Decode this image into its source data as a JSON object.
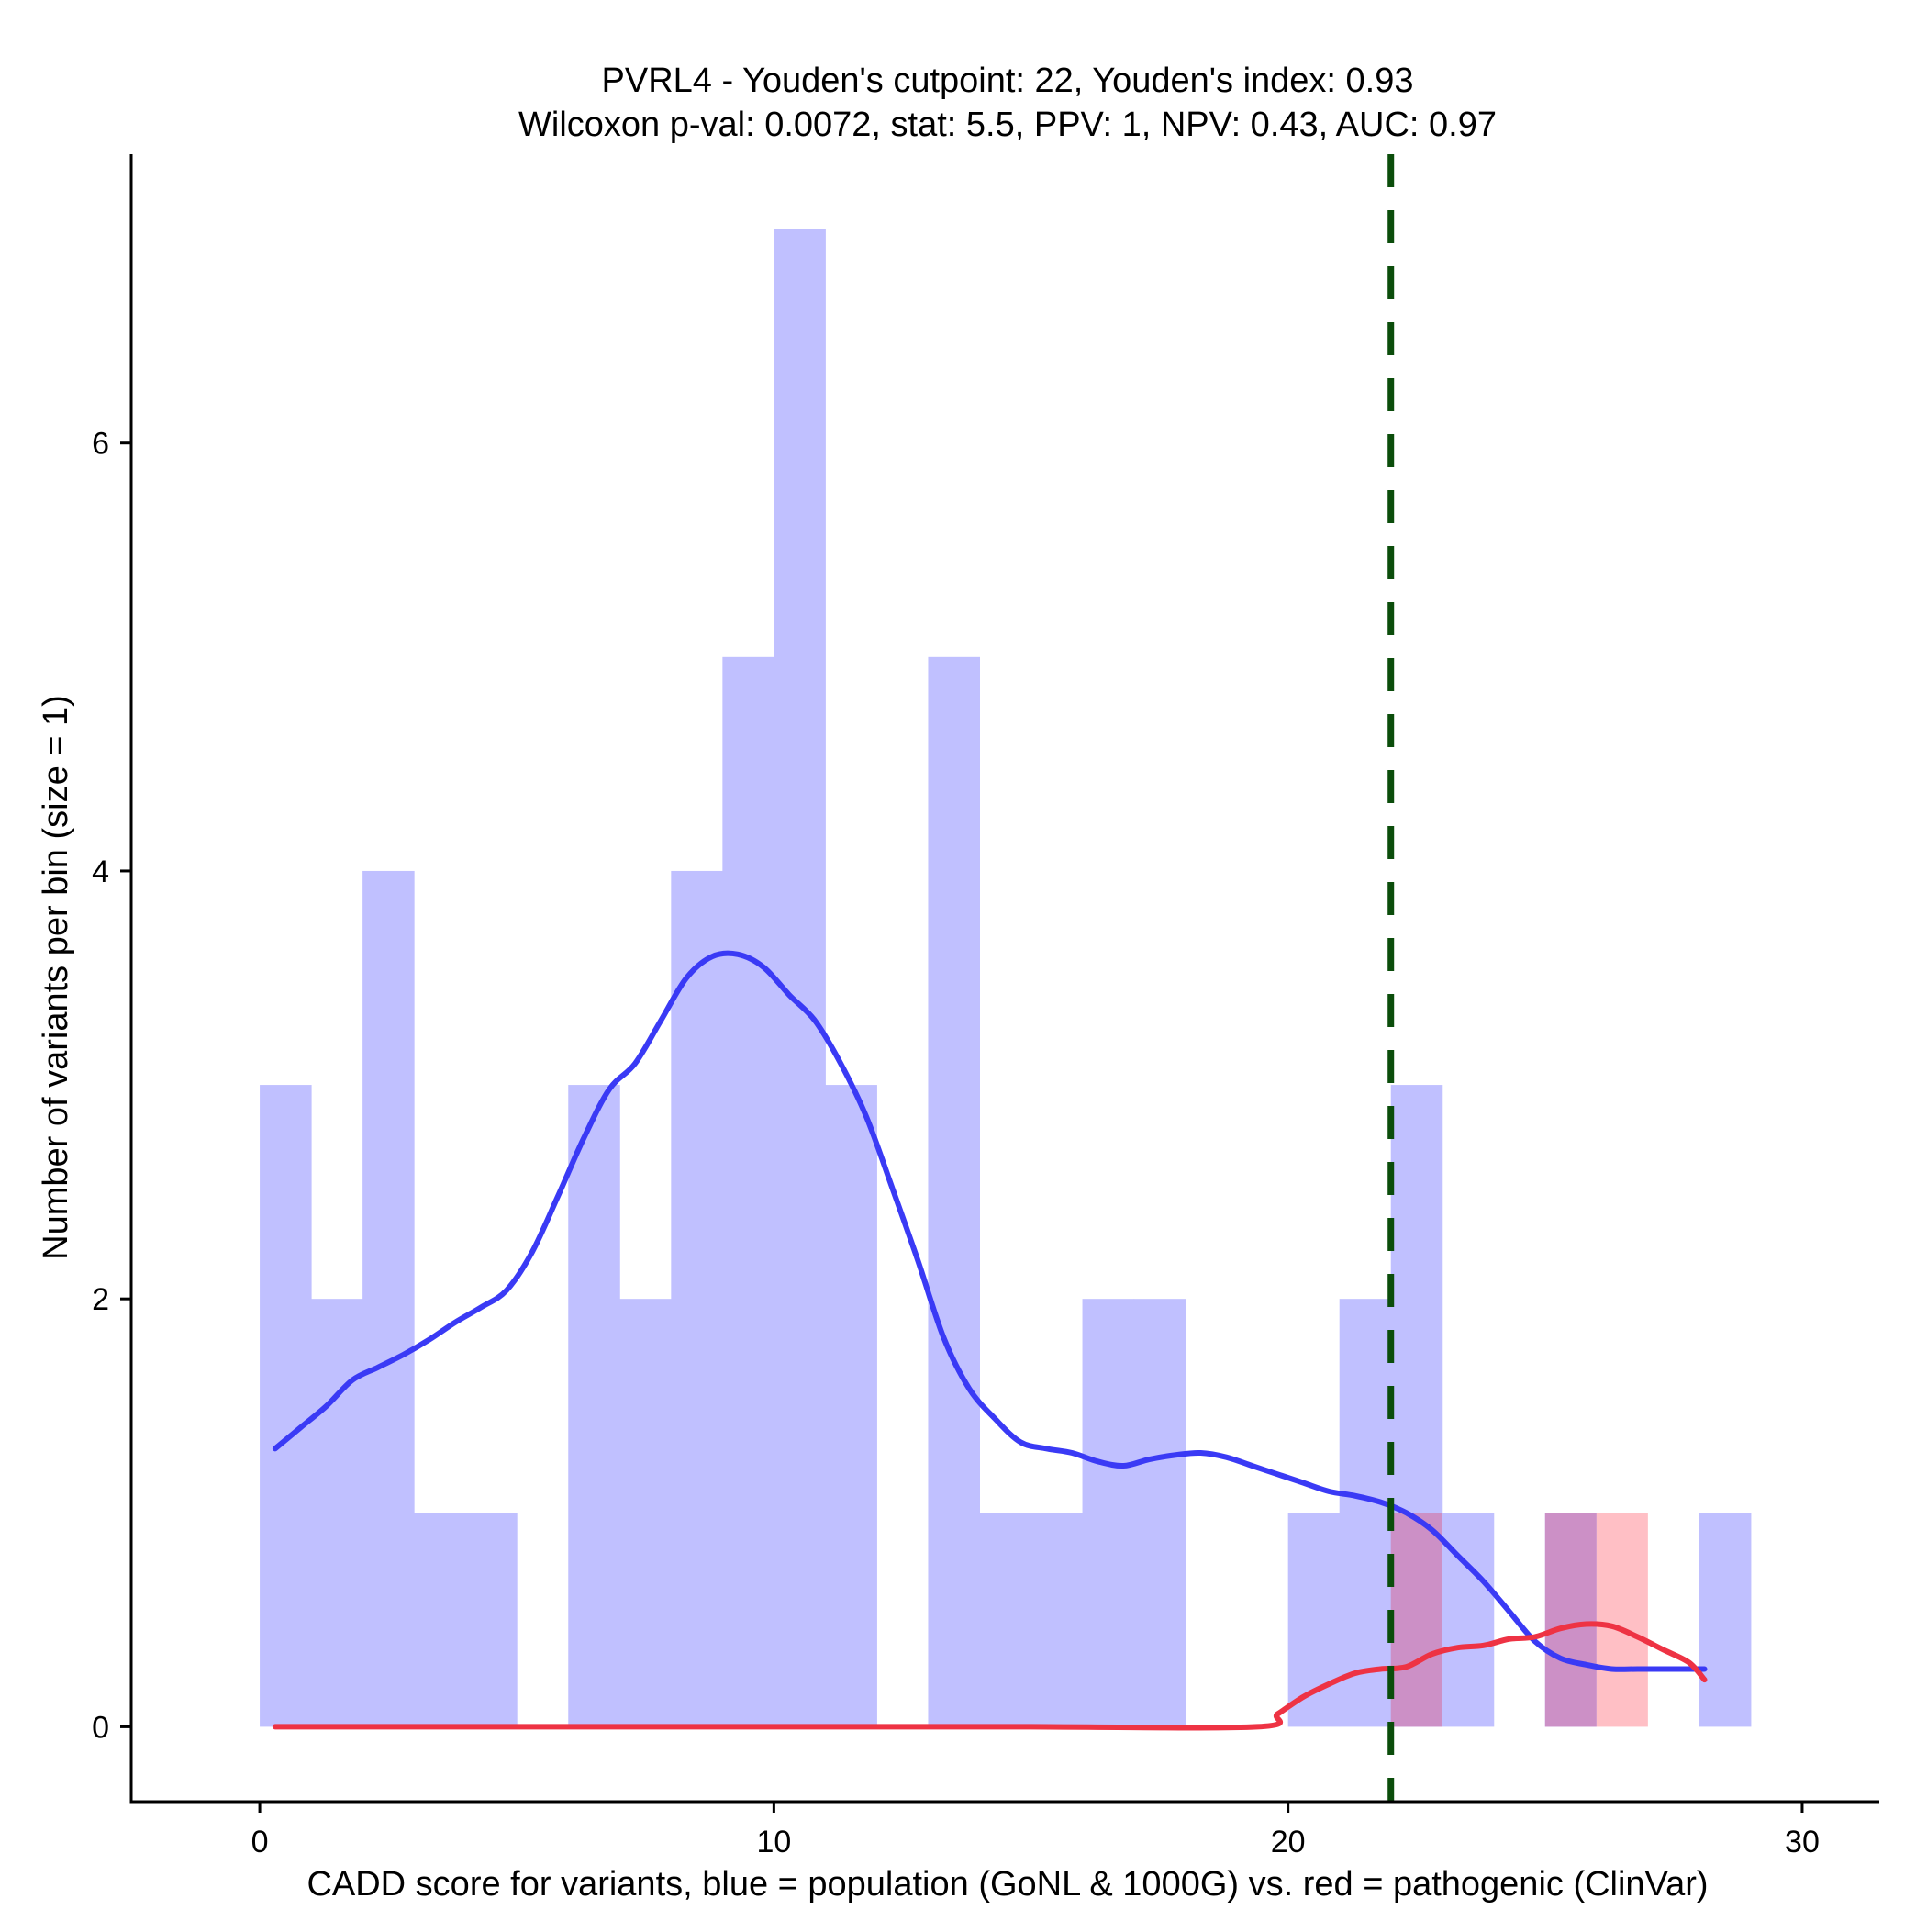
{
  "chart_data": {
    "type": "histogram",
    "title_line1": "PVRL4 - Youden's cutpoint: 22, Youden's index: 0.93",
    "title_line2": "Wilcoxon p-val: 0.0072, stat: 5.5, PPV: 1, NPV: 0.43, AUC: 0.97",
    "xlabel": "CADD score for variants, blue = population (GoNL & 1000G) vs. red = pathogenic (ClinVar)",
    "ylabel": "Number of variants per bin (size = 1)",
    "xlim": [
      -2.5,
      31.5
    ],
    "ylim": [
      -0.35,
      7.35
    ],
    "x_ticks": [
      0,
      10,
      20,
      30
    ],
    "x_tick_labels": [
      "0",
      "10",
      "20",
      "30"
    ],
    "y_ticks": [
      0,
      2,
      4,
      6
    ],
    "y_tick_labels": [
      "0",
      "2",
      "4",
      "6"
    ],
    "cutpoint": 22,
    "colors": {
      "population_bar": "#c0c0ff",
      "pathogenic_bar": "#ffbfc5",
      "overlap_bar": "#cc90c6",
      "population_line": "#3a3af5",
      "pathogenic_line": "#ee3344",
      "cutpoint_line": "#0b4d0b"
    },
    "series": [
      {
        "name": "population",
        "bin_width": 1,
        "bins": [
          {
            "start": 0,
            "count": 3
          },
          {
            "start": 1,
            "count": 2
          },
          {
            "start": 2,
            "count": 4
          },
          {
            "start": 3,
            "count": 1
          },
          {
            "start": 4,
            "count": 1
          },
          {
            "start": 5,
            "count": 0
          },
          {
            "start": 6,
            "count": 3
          },
          {
            "start": 7,
            "count": 2
          },
          {
            "start": 8,
            "count": 4
          },
          {
            "start": 9,
            "count": 5
          },
          {
            "start": 10,
            "count": 7
          },
          {
            "start": 11,
            "count": 3
          },
          {
            "start": 12,
            "count": 0
          },
          {
            "start": 13,
            "count": 5
          },
          {
            "start": 14,
            "count": 1
          },
          {
            "start": 15,
            "count": 1
          },
          {
            "start": 16,
            "count": 2
          },
          {
            "start": 17,
            "count": 2
          },
          {
            "start": 18,
            "count": 0
          },
          {
            "start": 19,
            "count": 0
          },
          {
            "start": 20,
            "count": 1
          },
          {
            "start": 21,
            "count": 2
          },
          {
            "start": 22,
            "count": 3
          },
          {
            "start": 23,
            "count": 1
          },
          {
            "start": 24,
            "count": 0
          },
          {
            "start": 25,
            "count": 1
          },
          {
            "start": 26,
            "count": 0
          },
          {
            "start": 27,
            "count": 0
          },
          {
            "start": 28,
            "count": 1
          }
        ]
      },
      {
        "name": "pathogenic",
        "bin_width": 1,
        "bins": [
          {
            "start": 22,
            "count": 1
          },
          {
            "start": 25,
            "count": 1
          },
          {
            "start": 26,
            "count": 1
          }
        ]
      }
    ],
    "density_lines": [
      {
        "name": "population",
        "x": [
          0.3,
          0.8,
          1.3,
          1.8,
          2.3,
          2.8,
          3.3,
          3.8,
          4.3,
          4.8,
          5.3,
          5.8,
          6.3,
          6.8,
          7.3,
          7.8,
          8.3,
          8.8,
          9.3,
          9.8,
          10.3,
          10.8,
          11.3,
          11.8,
          12.3,
          12.8,
          13.3,
          13.8,
          14.3,
          14.8,
          15.3,
          15.8,
          16.3,
          16.8,
          17.3,
          17.8,
          18.3,
          18.8,
          19.3,
          19.8,
          20.3,
          20.8,
          21.3,
          21.8,
          22.3,
          22.8,
          23.3,
          23.8,
          24.3,
          24.8,
          25.3,
          25.8,
          26.3,
          26.8,
          27.3,
          27.8,
          28.1
        ],
        "y": [
          1.3,
          1.4,
          1.5,
          1.62,
          1.68,
          1.74,
          1.81,
          1.89,
          1.96,
          2.04,
          2.22,
          2.48,
          2.75,
          2.98,
          3.1,
          3.3,
          3.5,
          3.6,
          3.61,
          3.55,
          3.42,
          3.3,
          3.1,
          2.85,
          2.52,
          2.18,
          1.82,
          1.58,
          1.44,
          1.33,
          1.3,
          1.28,
          1.24,
          1.22,
          1.25,
          1.27,
          1.28,
          1.26,
          1.22,
          1.18,
          1.14,
          1.1,
          1.08,
          1.05,
          1.0,
          0.92,
          0.8,
          0.68,
          0.54,
          0.4,
          0.32,
          0.29,
          0.27,
          0.27,
          0.27,
          0.27,
          0.27
        ],
        "comment": ""
      },
      {
        "name": "pathogenic",
        "x": [
          0.3,
          5,
          10,
          15,
          19.4,
          19.8,
          20.3,
          20.8,
          21.3,
          21.8,
          22.3,
          22.8,
          23.3,
          23.8,
          24.3,
          24.8,
          25.3,
          25.8,
          26.3,
          26.8,
          27.3,
          27.8,
          28.1
        ],
        "y": [
          0,
          0,
          0,
          0,
          0,
          0.06,
          0.14,
          0.2,
          0.25,
          0.27,
          0.28,
          0.34,
          0.37,
          0.38,
          0.41,
          0.42,
          0.46,
          0.48,
          0.47,
          0.42,
          0.36,
          0.3,
          0.22
        ]
      }
    ]
  }
}
